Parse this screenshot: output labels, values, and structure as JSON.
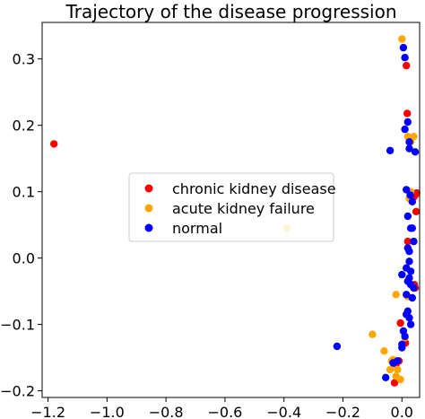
{
  "chart_data": {
    "type": "scatter",
    "title": "Trajectory of the disease progression",
    "xlabel": "",
    "ylabel": "",
    "xlim": [
      -1.22,
      0.06
    ],
    "ylim": [
      -0.21,
      0.355
    ],
    "x_ticks": [
      -1.2,
      -1.0,
      -0.8,
      -0.6,
      -0.4,
      -0.2,
      0.0
    ],
    "x_tick_labels": [
      "−1.2",
      "−1.0",
      "−0.8",
      "−0.6",
      "−0.4",
      "−0.2",
      "0.0"
    ],
    "y_ticks": [
      -0.2,
      -0.1,
      0.0,
      0.1,
      0.2,
      0.3
    ],
    "y_tick_labels": [
      "−0.2",
      "−0.1",
      "0.0",
      "0.1",
      "0.2",
      "0.3"
    ],
    "grid": false,
    "legend_position": "center-left",
    "series": [
      {
        "name": "chronic kidney disease",
        "color": "#ff0000",
        "points": [
          [
            -1.18,
            0.172
          ],
          [
            0.015,
            0.29
          ],
          [
            0.018,
            0.218
          ],
          [
            0.05,
            0.098
          ],
          [
            0.045,
            0.095
          ],
          [
            0.04,
            0.092
          ],
          [
            0.048,
            0.07
          ],
          [
            0.042,
            -0.04
          ],
          [
            0.045,
            -0.045
          ],
          [
            -0.005,
            -0.098
          ],
          [
            -0.02,
            -0.16
          ],
          [
            -0.01,
            -0.155
          ],
          [
            -0.025,
            -0.188
          ],
          [
            0.012,
            -0.128
          ],
          [
            0.02,
            0.025
          ]
        ]
      },
      {
        "name": "acute kidney failure",
        "color": "#ffa500",
        "points": [
          [
            0.0,
            0.33
          ],
          [
            -0.39,
            0.045
          ],
          [
            0.02,
            0.183
          ],
          [
            0.04,
            0.183
          ],
          [
            0.03,
            0.175
          ],
          [
            0.025,
            0.09
          ],
          [
            0.03,
            0.1
          ],
          [
            -0.02,
            -0.055
          ],
          [
            -0.03,
            -0.153
          ],
          [
            -0.04,
            -0.168
          ],
          [
            -0.015,
            -0.168
          ],
          [
            -0.02,
            -0.178
          ],
          [
            -0.005,
            -0.183
          ],
          [
            0.01,
            -0.12
          ],
          [
            -0.035,
            -0.155
          ],
          [
            -0.06,
            -0.14
          ],
          [
            -0.1,
            -0.115
          ],
          [
            0.02,
            -0.058
          ]
        ]
      },
      {
        "name": "normal",
        "color": "#0000ff",
        "points": [
          [
            0.005,
            0.317
          ],
          [
            0.01,
            0.302
          ],
          [
            0.01,
            0.194
          ],
          [
            0.02,
            0.205
          ],
          [
            0.025,
            0.175
          ],
          [
            0.025,
            0.165
          ],
          [
            -0.04,
            0.162
          ],
          [
            0.045,
            0.16
          ],
          [
            0.015,
            0.103
          ],
          [
            0.028,
            0.095
          ],
          [
            0.035,
            0.085
          ],
          [
            0.02,
            0.063
          ],
          [
            0.03,
            0.045
          ],
          [
            0.035,
            0.045
          ],
          [
            0.04,
            0.025
          ],
          [
            0.02,
            0.015
          ],
          [
            0.025,
            0.01
          ],
          [
            0.025,
            -0.005
          ],
          [
            0.015,
            -0.015
          ],
          [
            0.03,
            -0.02
          ],
          [
            0.0,
            -0.025
          ],
          [
            0.02,
            -0.035
          ],
          [
            0.03,
            -0.04
          ],
          [
            0.04,
            -0.045
          ],
          [
            0.015,
            -0.055
          ],
          [
            0.035,
            -0.06
          ],
          [
            0.02,
            -0.08
          ],
          [
            0.015,
            -0.085
          ],
          [
            0.025,
            -0.09
          ],
          [
            0.005,
            -0.11
          ],
          [
            0.01,
            -0.118
          ],
          [
            0.03,
            -0.1
          ],
          [
            0.0,
            -0.13
          ],
          [
            -0.22,
            -0.133
          ],
          [
            -0.03,
            -0.158
          ],
          [
            0.0,
            -0.135
          ],
          [
            -0.055,
            -0.18
          ],
          [
            -0.015,
            -0.155
          ],
          [
            0.025,
            -0.03
          ]
        ]
      }
    ]
  }
}
